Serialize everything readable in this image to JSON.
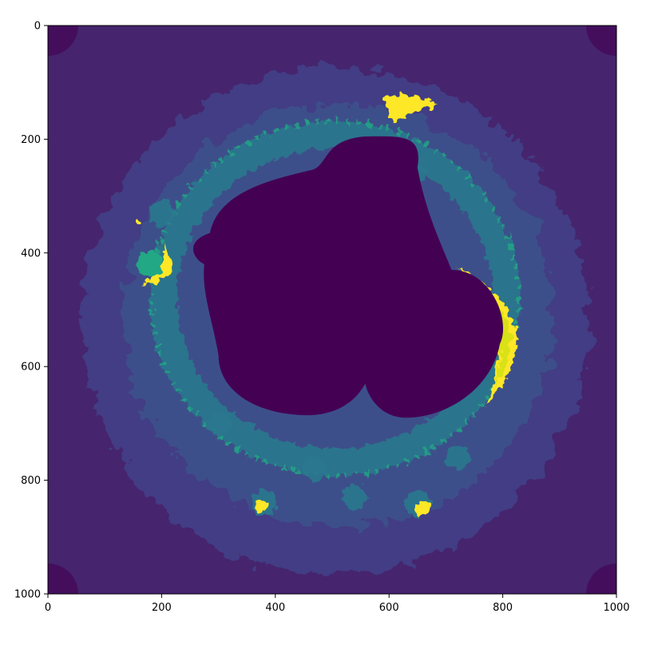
{
  "chart_data": {
    "type": "heatmap",
    "title": "",
    "xlabel": "",
    "ylabel": "",
    "xlim": [
      0,
      1000
    ],
    "ylim": [
      1000,
      0
    ],
    "xticks": [
      {
        "value": 0,
        "label": "0"
      },
      {
        "value": 200,
        "label": "200"
      },
      {
        "value": 400,
        "label": "400"
      },
      {
        "value": 600,
        "label": "600"
      },
      {
        "value": 800,
        "label": "800"
      },
      {
        "value": 1000,
        "label": "1000"
      }
    ],
    "yticks": [
      {
        "value": 0,
        "label": "0"
      },
      {
        "value": 200,
        "label": "200"
      },
      {
        "value": 400,
        "label": "400"
      },
      {
        "value": 600,
        "label": "600"
      },
      {
        "value": 800,
        "label": "800"
      },
      {
        "value": 1000,
        "label": "1000"
      }
    ],
    "colormap": "viridis",
    "colors": {
      "background": "#46246e",
      "inner_halo": "#433e85",
      "ring": "#3b528b",
      "filaments": "#2a788e",
      "highlight": "#22a884",
      "hot": "#fde725",
      "bright": "#d8e219",
      "interior": "#440154",
      "corner": "#440e5d"
    },
    "description_features": [
      {
        "name": "central-set",
        "shape": "cardioid-bulb"
      },
      {
        "name": "hot-crescent-right",
        "center": [
          800,
          520
        ]
      },
      {
        "name": "hot-crescent-left",
        "center": [
          200,
          430
        ]
      },
      {
        "name": "hot-cap-top",
        "center": [
          625,
          145
        ]
      },
      {
        "name": "hot-spot-bottom",
        "center": [
          660,
          850
        ]
      },
      {
        "name": "hot-spot-bottom-left",
        "center": [
          375,
          845
        ]
      }
    ]
  }
}
